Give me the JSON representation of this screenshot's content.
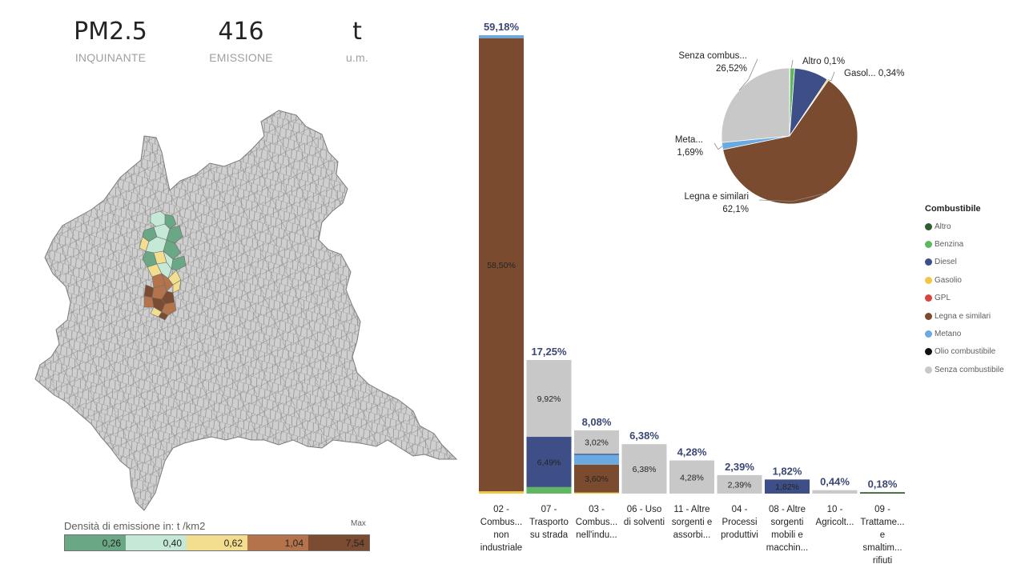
{
  "kpis": [
    {
      "value": "PM2.5",
      "caption": "INQUINANTE"
    },
    {
      "value": "416",
      "caption": "EMISSIONE"
    },
    {
      "value": "t",
      "caption": "u.m."
    }
  ],
  "colors": {
    "Altro": "#2f5d2f",
    "Benzina": "#5fb85f",
    "Diesel": "#3e4e87",
    "Gasolio": "#f2c744",
    "GPL": "#d64541",
    "Legna e similari": "#7a4b2f",
    "Metano": "#6aaae0",
    "Olio combustibile": "#111111",
    "Senza combustibile": "#c8c8c8"
  },
  "density_legend": {
    "title": "Densità di emissione in:  t /km2",
    "max_label": "Max",
    "bins": [
      {
        "label": "0,26",
        "color": "#6aa784"
      },
      {
        "label": "0,40",
        "color": "#c5e9d6"
      },
      {
        "label": "0,62",
        "color": "#f3dd8e"
      },
      {
        "label": "1,04",
        "color": "#b4734a"
      },
      {
        "label": "7,54",
        "color": "#7b4c31"
      }
    ]
  },
  "legend": {
    "title": "Combustibile",
    "items": [
      "Altro",
      "Benzina",
      "Diesel",
      "Gasolio",
      "GPL",
      "Legna e similari",
      "Metano",
      "Olio combustibile",
      "Senza combustibile"
    ]
  },
  "chart_data": [
    {
      "type": "bar",
      "stacked": true,
      "categories": [
        [
          "02 -",
          "Combus...",
          "non",
          "industriale"
        ],
        [
          "07 -",
          "Trasporto",
          "su strada"
        ],
        [
          "03 -",
          "Combus...",
          "nell'indu..."
        ],
        [
          "06 - Uso",
          "di solventi"
        ],
        [
          "11 - Altre",
          "sorgenti e",
          "assorbi..."
        ],
        [
          "04 -",
          "Processi",
          "produttivi"
        ],
        [
          "08 - Altre",
          "sorgenti",
          "mobili e",
          "macchin..."
        ],
        [
          "10 -",
          "Agricolt..."
        ],
        [
          "09 -",
          "Trattame...",
          "e",
          "smaltim...",
          "rifiuti"
        ]
      ],
      "totals": [
        59.18,
        17.25,
        8.08,
        6.38,
        4.28,
        2.39,
        1.82,
        0.44,
        0.18
      ],
      "total_labels": [
        "59,18%",
        "17,25%",
        "8,08%",
        "6,38%",
        "4,28%",
        "2,39%",
        "1,82%",
        "0,44%",
        "0,18%"
      ],
      "stacks": [
        [
          {
            "fuel": "Gasolio",
            "value": 0.3
          },
          {
            "fuel": "Legna e similari",
            "value": 58.5,
            "label": "58,50%"
          },
          {
            "fuel": "Metano",
            "value": 0.38
          }
        ],
        [
          {
            "fuel": "Benzina",
            "value": 0.84
          },
          {
            "fuel": "Diesel",
            "value": 6.49,
            "label": "6,49%"
          },
          {
            "fuel": "Senza combustibile",
            "value": 9.92,
            "label": "9,92%"
          }
        ],
        [
          {
            "fuel": "Gasolio",
            "value": 0.1
          },
          {
            "fuel": "Legna e similari",
            "value": 3.6,
            "label": "3,60%"
          },
          {
            "fuel": "Metano",
            "value": 1.26
          },
          {
            "fuel": "Diesel",
            "value": 0.1
          },
          {
            "fuel": "Senza combustibile",
            "value": 3.02,
            "label": "3,02%"
          }
        ],
        [
          {
            "fuel": "Senza combustibile",
            "value": 6.38,
            "label": "6,38%"
          }
        ],
        [
          {
            "fuel": "Senza combustibile",
            "value": 4.28,
            "label": "4,28%"
          }
        ],
        [
          {
            "fuel": "Senza combustibile",
            "value": 2.39,
            "label": "2,39%"
          }
        ],
        [
          {
            "fuel": "Diesel",
            "value": 1.82,
            "label": "1,82%"
          }
        ],
        [
          {
            "fuel": "Senza combustibile",
            "value": 0.44
          }
        ],
        [
          {
            "fuel": "Altro",
            "value": 0.18
          }
        ]
      ],
      "ylim": [
        0,
        59.18
      ]
    },
    {
      "type": "pie",
      "slices": [
        {
          "fuel": "Altro",
          "value": 0.1,
          "label_name": "Altro",
          "label_value": "0,1%"
        },
        {
          "fuel": "Benzina",
          "value": 1.1
        },
        {
          "fuel": "Diesel",
          "value": 8.15
        },
        {
          "fuel": "Gasolio",
          "value": 0.34,
          "label_name": "Gasol...",
          "label_value": "0,34%"
        },
        {
          "fuel": "Legna e similari",
          "value": 62.1,
          "label_name": "Legna e similari",
          "label_value": "62,1%"
        },
        {
          "fuel": "Metano",
          "value": 1.69,
          "label_name": "Meta...",
          "label_value": "1,69%"
        },
        {
          "fuel": "Senza combustibile",
          "value": 26.52,
          "label_name": "Senza combus...",
          "label_value": "26,52%"
        }
      ]
    }
  ]
}
